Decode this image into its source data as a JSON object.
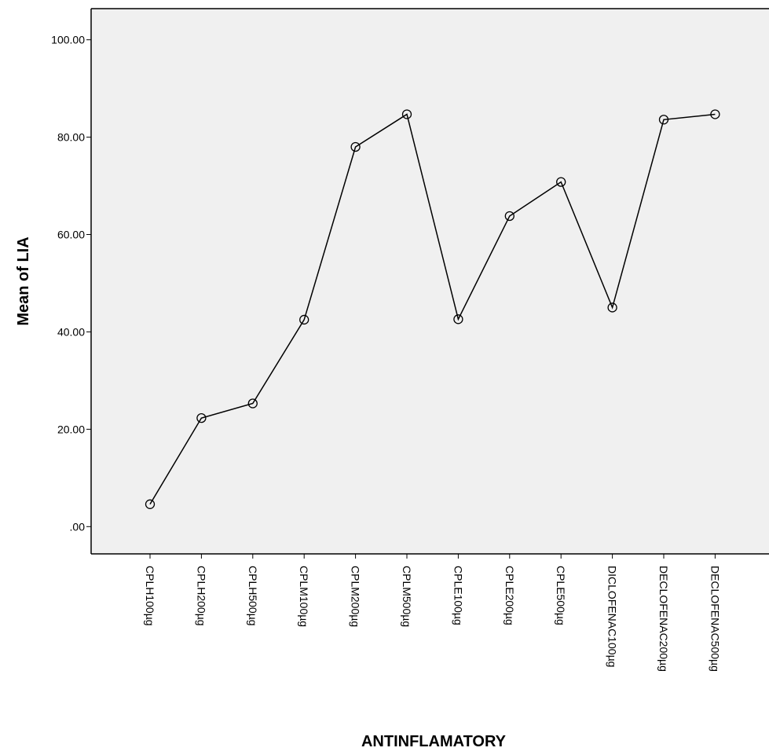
{
  "chart_data": {
    "type": "line",
    "title": "",
    "xlabel": "ANTINFLAMATORY",
    "ylabel": "Mean of LIA",
    "categories": [
      "CPLH100µg",
      "CPLH200µg",
      "CPLH500µg",
      "CPLM100µg",
      "CPLM200µg",
      "CPLM500µg",
      "CPLE100µg",
      "CPLE200µg",
      "CPLE500µg",
      "DICLOFENAC100µg",
      "DECLOFENAC200µg",
      "DECLOFENAC500µg"
    ],
    "values": [
      4.6,
      22.3,
      25.3,
      42.5,
      78.0,
      84.7,
      42.6,
      63.8,
      70.8,
      45.0,
      83.6,
      84.7
    ],
    "ylim": [
      -5.6,
      106.4
    ],
    "yticks": [
      0,
      20,
      40,
      60,
      80,
      100
    ],
    "ytick_labels": [
      ".00",
      "20.00",
      "40.00",
      "60.00",
      "80.00",
      "100.00"
    ],
    "grid": false,
    "marker": "open-circle",
    "colors": {
      "plot_background": "#f0f0f0",
      "line": "#000000",
      "axis": "#000000"
    }
  }
}
